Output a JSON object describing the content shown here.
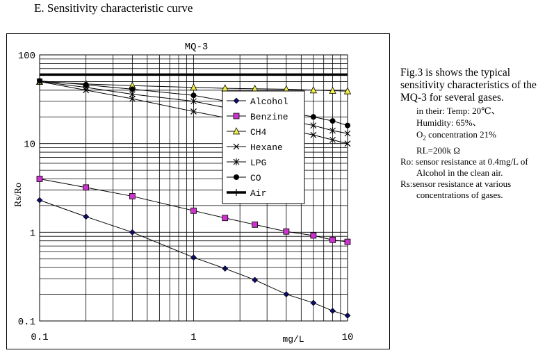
{
  "heading": "E. Sensitivity characteristic curve",
  "chart_data": {
    "type": "line",
    "title": "MQ-3",
    "xscale": "log",
    "yscale": "log",
    "xlim": [
      0.1,
      10
    ],
    "ylim": [
      0.1,
      100
    ],
    "xlabel": "mg/L",
    "ylabel": "Rs/Ro",
    "xtick_labels": [
      "0.1",
      "1",
      "10"
    ],
    "ytick_labels": [
      "100",
      "10",
      "1",
      "0.1"
    ],
    "grid": true,
    "legend_position": "center",
    "series": [
      {
        "name": "Alcohol",
        "marker": "diamond",
        "color": "#0d0d66",
        "x": [
          0.1,
          0.2,
          0.4,
          1,
          1.6,
          2.5,
          4,
          6,
          8,
          10
        ],
        "y": [
          2.3,
          1.5,
          1.0,
          0.52,
          0.39,
          0.29,
          0.2,
          0.16,
          0.13,
          0.115
        ]
      },
      {
        "name": "Benzine",
        "marker": "square",
        "color": "#cc33cc",
        "x": [
          0.1,
          0.2,
          0.4,
          1,
          1.6,
          2.5,
          4,
          6,
          8,
          10
        ],
        "y": [
          4.0,
          3.2,
          2.55,
          1.75,
          1.45,
          1.22,
          1.02,
          0.92,
          0.82,
          0.78
        ]
      },
      {
        "name": "CH4",
        "marker": "triangle",
        "color": "#f2ee44",
        "x": [
          0.1,
          0.2,
          0.4,
          1,
          1.6,
          2.5,
          4,
          6,
          8,
          10
        ],
        "y": [
          50,
          47,
          45,
          43,
          42,
          41.5,
          41,
          40,
          39.5,
          39
        ]
      },
      {
        "name": "Hexane",
        "marker": "x",
        "color": "#000000",
        "x": [
          0.1,
          0.2,
          0.4,
          1,
          6,
          8,
          10
        ],
        "y": [
          50,
          40,
          32,
          23,
          12.5,
          11,
          10
        ]
      },
      {
        "name": "LPG",
        "marker": "asterisk",
        "color": "#000000",
        "x": [
          0.1,
          0.2,
          0.4,
          1,
          6,
          8,
          10
        ],
        "y": [
          50,
          43,
          36,
          30,
          16,
          14,
          13
        ]
      },
      {
        "name": "CO",
        "marker": "circle",
        "color": "#000000",
        "x": [
          0.1,
          0.2,
          0.4,
          1,
          6,
          8,
          10
        ],
        "y": [
          51,
          46,
          41,
          35,
          20,
          18,
          16
        ]
      },
      {
        "name": "Air",
        "marker": "plus",
        "color": "#000000",
        "x": [
          0.1,
          10
        ],
        "y": [
          60,
          60
        ]
      }
    ]
  },
  "notes": {
    "lead": "Fig.3 is shows the typical sensitivity characteristics of the MQ-3 for several gases.",
    "cond_intro": "in their: Temp: 20℃、",
    "humidity": "Humidity: 65%、",
    "o2_prefix": "O",
    "o2_sub": "2",
    "o2_suffix": " concentration 21%",
    "rl": "RL=200k Ω",
    "ro_def": "Ro: sensor resistance at 0.4mg/L of",
    "ro_def_cont": "Alcohol in the clean air.",
    "rs_def": "Rs:sensor resistance at various",
    "rs_def_cont": "concentrations of gases."
  }
}
